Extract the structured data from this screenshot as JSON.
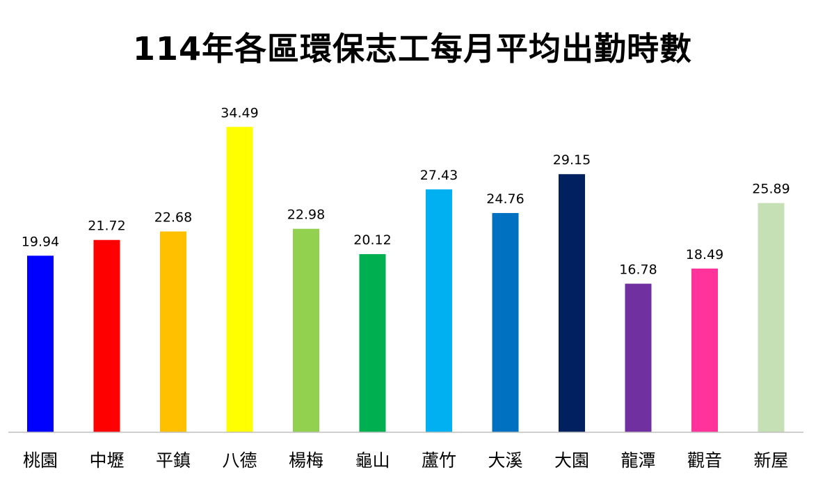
{
  "chart_data": {
    "type": "bar",
    "title": "114年各區環保志工每月平均出勤時數",
    "xlabel": "",
    "ylabel": "",
    "categories": [
      "桃園",
      "中壢",
      "平鎮",
      "八德",
      "楊梅",
      "龜山",
      "蘆竹",
      "大溪",
      "大園",
      "龍潭",
      "觀音",
      "新屋"
    ],
    "values": [
      19.94,
      21.72,
      22.68,
      34.49,
      22.98,
      20.12,
      27.43,
      24.76,
      29.15,
      16.78,
      18.49,
      25.89
    ],
    "value_labels": [
      "19.94",
      "21.72",
      "22.68",
      "34.49",
      "22.98",
      "20.12",
      "27.43",
      "24.76",
      "29.15",
      "16.78",
      "18.49",
      "25.89"
    ],
    "colors": [
      "#0000FF",
      "#FF0000",
      "#FFC000",
      "#FFFF00",
      "#92D050",
      "#00B050",
      "#00B0F0",
      "#0070C0",
      "#002060",
      "#7030A0",
      "#FF3399",
      "#C5E0B4"
    ],
    "ylim": [
      0,
      40
    ],
    "grid": false,
    "legend": "none",
    "data_labels": true
  }
}
